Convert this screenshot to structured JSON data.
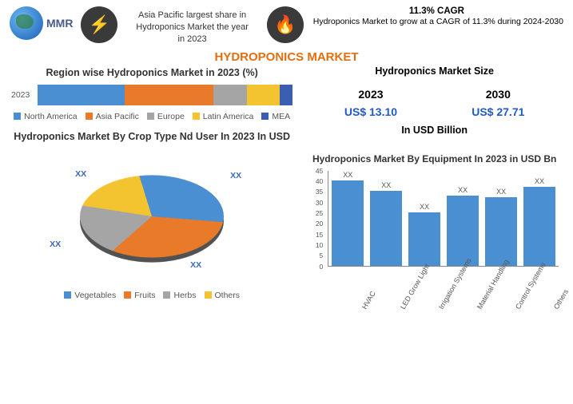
{
  "header": {
    "logo_text": "MMR",
    "left_blurb": "Asia Pacific largest share in Hydroponics Market the year in 2023",
    "cagr_title": "11.3% CAGR",
    "cagr_sub": "Hydroponics Market to grow at a CAGR of 11.3% during 2024-2030"
  },
  "main_title": "HYDROPONICS MARKET",
  "stacked": {
    "title": "Region wise Hydroponics Market  in 2023 (%)",
    "row_label": "2023",
    "segments": [
      {
        "label": "North America",
        "pct": 34,
        "color": "#4a8fd1"
      },
      {
        "label": "Asia Pacific",
        "pct": 35,
        "color": "#e87a2a"
      },
      {
        "label": "Europe",
        "pct": 13,
        "color": "#a5a5a5"
      },
      {
        "label": "Latin America",
        "pct": 13,
        "color": "#f4c430"
      },
      {
        "label": "MEA",
        "pct": 5,
        "color": "#3a5fb0"
      }
    ]
  },
  "market_size": {
    "title": "Hydroponics Market Size",
    "year_a": "2023",
    "val_a": "US$ 13.10",
    "year_b": "2030",
    "val_b": "US$ 27.71",
    "unit": "In USD Billion"
  },
  "pie": {
    "title": "Hydroponics Market By Crop Type Nd User In 2023 In USD",
    "slices": [
      {
        "label": "Vegetables",
        "pct": 30,
        "color": "#4a8fd1"
      },
      {
        "label": "Fruits",
        "pct": 32,
        "color": "#e87a2a"
      },
      {
        "label": "Herbs",
        "pct": 20,
        "color": "#a5a5a5"
      },
      {
        "label": "Others",
        "pct": 18,
        "color": "#f4c430"
      }
    ],
    "value_label": "XX"
  },
  "bar": {
    "title": "Hydroponics Market By Equipment In 2023 in USD Bn",
    "color": "#4a8fd1",
    "ymax": 45,
    "ytick_step": 5,
    "items": [
      {
        "label": "HVAC",
        "val": 40,
        "disp": "XX"
      },
      {
        "label": "LED Grow Light",
        "val": 35,
        "disp": "XX"
      },
      {
        "label": "Irrigation Systems",
        "val": 25,
        "disp": "XX"
      },
      {
        "label": "Material Handling",
        "val": 33,
        "disp": "XX"
      },
      {
        "label": "Control Systems",
        "val": 32,
        "disp": "XX"
      },
      {
        "label": "Others",
        "val": 37,
        "disp": "XX"
      }
    ]
  }
}
